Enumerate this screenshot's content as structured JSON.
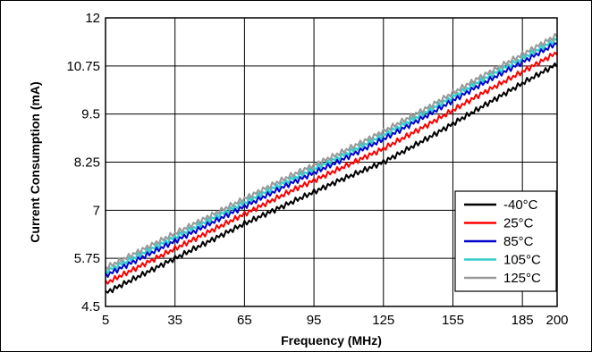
{
  "chart_data": {
    "type": "line",
    "title": "",
    "xlabel": "Frequency (MHz)",
    "ylabel": "Current Consumption (mA)",
    "xlim": [
      5,
      200
    ],
    "ylim": [
      4.5,
      12
    ],
    "x_ticks": [
      5,
      35,
      65,
      95,
      125,
      155,
      185,
      200
    ],
    "y_ticks": [
      4.5,
      5.75,
      7,
      8.25,
      9.5,
      10.75,
      12
    ],
    "x_tick_labels": [
      "5",
      "35",
      "65",
      "95",
      "125",
      "155",
      "185",
      "200"
    ],
    "y_tick_labels": [
      "4.5",
      "5.75",
      "7",
      "8.25",
      "9.5",
      "10.75",
      "12"
    ],
    "grid": true,
    "legend_position": "bottom-right",
    "x": [
      5,
      25,
      45,
      65,
      85,
      105,
      125,
      145,
      165,
      185,
      200
    ],
    "series": [
      {
        "name": "-40°C",
        "color": "#000000",
        "values": [
          4.85,
          5.45,
          6.05,
          6.65,
          7.2,
          7.75,
          8.25,
          8.9,
          9.6,
          10.3,
          10.8
        ]
      },
      {
        "name": "25°C",
        "color": "#ff0000",
        "values": [
          5.1,
          5.7,
          6.3,
          6.9,
          7.5,
          8.05,
          8.6,
          9.25,
          9.95,
          10.6,
          11.1
        ]
      },
      {
        "name": "85°C",
        "color": "#0000cc",
        "values": [
          5.3,
          5.9,
          6.5,
          7.1,
          7.7,
          8.25,
          8.85,
          9.5,
          10.2,
          10.85,
          11.35
        ]
      },
      {
        "name": "105°C",
        "color": "#33cccc",
        "values": [
          5.4,
          6.0,
          6.6,
          7.2,
          7.8,
          8.35,
          8.95,
          9.6,
          10.3,
          10.95,
          11.45
        ]
      },
      {
        "name": "125°C",
        "color": "#999999",
        "values": [
          5.5,
          6.1,
          6.7,
          7.3,
          7.9,
          8.45,
          9.05,
          9.7,
          10.4,
          11.05,
          11.55
        ]
      }
    ]
  }
}
